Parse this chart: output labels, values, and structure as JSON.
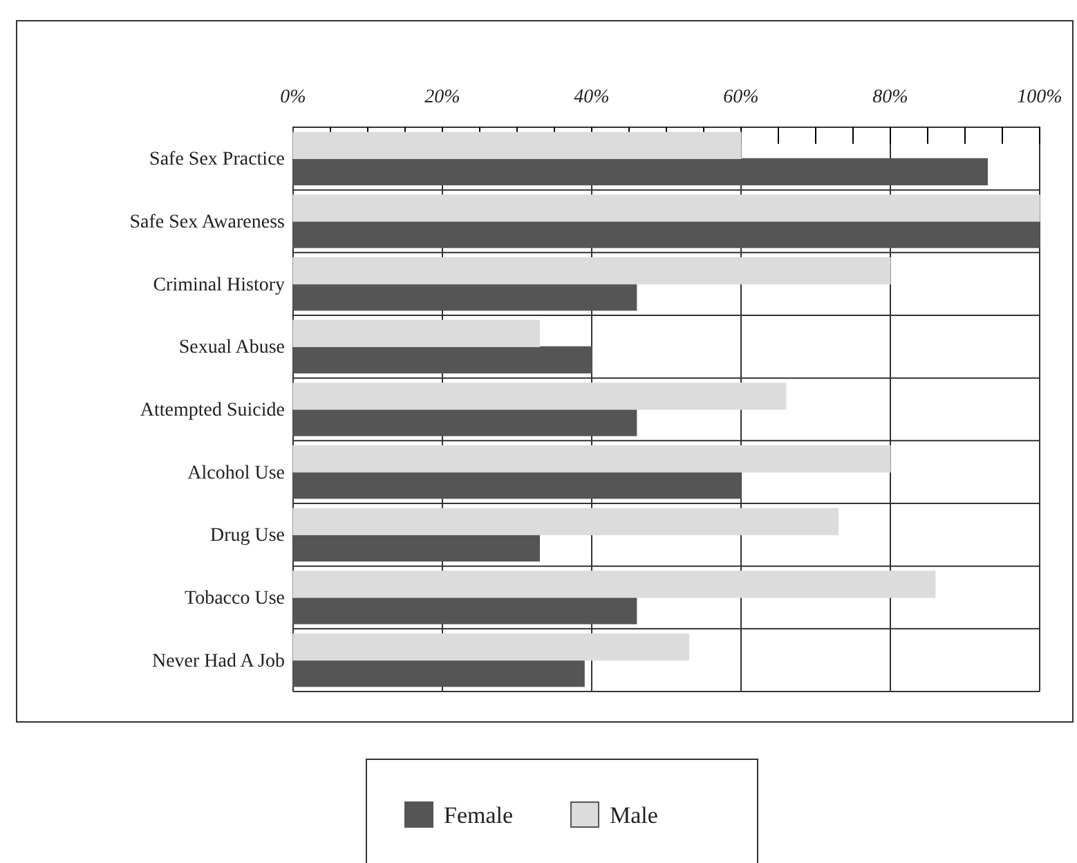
{
  "chart_data": {
    "type": "bar",
    "orientation": "horizontal",
    "categories": [
      "Safe Sex Practice",
      "Safe Sex Awareness",
      "Criminal History",
      "Sexual Abuse",
      "Attempted Suicide",
      "Alcohol Use",
      "Drug Use",
      "Tobacco Use",
      "Never Had A Job"
    ],
    "series": [
      {
        "name": "Female",
        "color": "#555555",
        "values": [
          93,
          100,
          46,
          40,
          46,
          60,
          33,
          46,
          39
        ]
      },
      {
        "name": "Male",
        "color": "#dcdcdc",
        "values": [
          60,
          100,
          80,
          33,
          66,
          80,
          73,
          86,
          53
        ]
      }
    ],
    "xlim": [
      0,
      100
    ],
    "xticks": [
      {
        "value": 0,
        "label": "0%"
      },
      {
        "value": 5,
        "label": null
      },
      {
        "value": 10,
        "label": null
      },
      {
        "value": 15,
        "label": null
      },
      {
        "value": 20,
        "label": "20%"
      },
      {
        "value": 25,
        "label": null
      },
      {
        "value": 30,
        "label": null
      },
      {
        "value": 35,
        "label": null
      },
      {
        "value": 40,
        "label": "40%"
      },
      {
        "value": 45,
        "label": null
      },
      {
        "value": 50,
        "label": null
      },
      {
        "value": 55,
        "label": null
      },
      {
        "value": 60,
        "label": "60%"
      },
      {
        "value": 65,
        "label": null
      },
      {
        "value": 70,
        "label": null
      },
      {
        "value": 75,
        "label": null
      },
      {
        "value": 80,
        "label": "80%"
      },
      {
        "value": 85,
        "label": null
      },
      {
        "value": 90,
        "label": null
      },
      {
        "value": 95,
        "label": null
      },
      {
        "value": 100,
        "label": "100%"
      }
    ],
    "grid": true,
    "legend": "bottom"
  }
}
